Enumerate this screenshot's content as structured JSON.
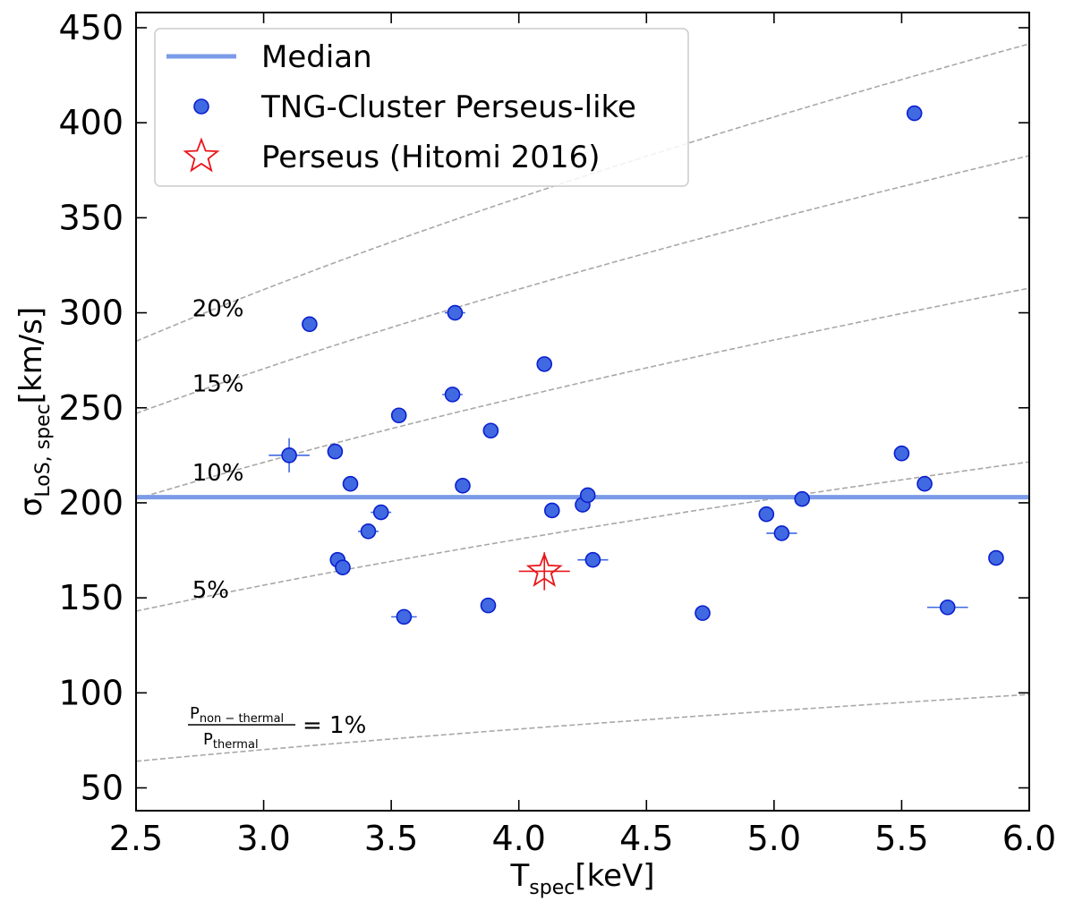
{
  "chart_data": {
    "type": "scatter",
    "xlabel": {
      "main": "T",
      "sub": "spec",
      "unit": "[keV]"
    },
    "ylabel": {
      "main": "σ",
      "sub": "LoS, spec",
      "unit": "[km/s]"
    },
    "xlim": [
      2.5,
      6.0
    ],
    "ylim": [
      38,
      458
    ],
    "x_ticks": [
      "2.5",
      "3.0",
      "3.5",
      "4.0",
      "4.5",
      "5.0",
      "5.5",
      "6.0"
    ],
    "y_ticks": [
      "50",
      "100",
      "150",
      "200",
      "250",
      "300",
      "350",
      "400",
      "450"
    ],
    "grid": false,
    "legend_position": "top-left",
    "legend": [
      {
        "label": "Median",
        "kind": "line"
      },
      {
        "label": "TNG-Cluster Perseus-like",
        "kind": "marker"
      },
      {
        "label": "Perseus (Hitomi 2016)",
        "kind": "star"
      }
    ],
    "median": 203,
    "colors": {
      "points": "#4169e1",
      "point_edge": "#0a1fd0",
      "median": "#7b9be8",
      "perseus": "#e8161b",
      "guide": "#a8a8a8"
    },
    "pressure_ratio_curves": [
      {
        "label": "20%",
        "percent": 20,
        "y_at": [
          [
            2.5,
            285
          ],
          [
            6.0,
            441
          ]
        ]
      },
      {
        "label": "15%",
        "percent": 15,
        "y_at": [
          [
            2.5,
            247
          ],
          [
            6.0,
            382
          ]
        ]
      },
      {
        "label": "10%",
        "percent": 10,
        "y_at": [
          [
            2.5,
            202
          ],
          [
            6.0,
            312
          ]
        ]
      },
      {
        "label": "5%",
        "percent": 5,
        "y_at": [
          [
            2.5,
            143
          ],
          [
            6.0,
            221
          ]
        ]
      },
      {
        "percent": 1,
        "y_at": [
          [
            2.5,
            64
          ],
          [
            6.0,
            99
          ]
        ]
      }
    ],
    "ratio_annotation": {
      "numerator": "P",
      "numerator_sub": "non − thermal",
      "denominator": "P",
      "denominator_sub": "thermal",
      "equals": "= 1%"
    },
    "tng_points": [
      {
        "x": 3.1,
        "y": 225,
        "xerr": 0.08,
        "yerr": 9
      },
      {
        "x": 3.18,
        "y": 294
      },
      {
        "x": 3.28,
        "y": 227
      },
      {
        "x": 3.29,
        "y": 170
      },
      {
        "x": 3.31,
        "y": 166
      },
      {
        "x": 3.34,
        "y": 210
      },
      {
        "x": 3.41,
        "y": 185,
        "xerr": 0.04
      },
      {
        "x": 3.46,
        "y": 195,
        "xerr": 0.04
      },
      {
        "x": 3.53,
        "y": 246
      },
      {
        "x": 3.55,
        "y": 140,
        "xerr": 0.05
      },
      {
        "x": 3.74,
        "y": 257,
        "xerr": 0.04
      },
      {
        "x": 3.75,
        "y": 300,
        "xerr": 0.04
      },
      {
        "x": 3.78,
        "y": 209
      },
      {
        "x": 3.88,
        "y": 146
      },
      {
        "x": 3.89,
        "y": 238
      },
      {
        "x": 4.1,
        "y": 273
      },
      {
        "x": 4.13,
        "y": 196
      },
      {
        "x": 4.25,
        "y": 199
      },
      {
        "x": 4.27,
        "y": 204
      },
      {
        "x": 4.29,
        "y": 170,
        "xerr": 0.06
      },
      {
        "x": 4.72,
        "y": 142
      },
      {
        "x": 4.97,
        "y": 194
      },
      {
        "x": 5.03,
        "y": 184,
        "xerr": 0.06
      },
      {
        "x": 5.11,
        "y": 202
      },
      {
        "x": 5.5,
        "y": 226
      },
      {
        "x": 5.55,
        "y": 405
      },
      {
        "x": 5.59,
        "y": 210
      },
      {
        "x": 5.68,
        "y": 145,
        "xerr": 0.08
      },
      {
        "x": 5.87,
        "y": 171
      }
    ],
    "perseus": {
      "x": 4.1,
      "y": 164,
      "xerr": 0.1,
      "yerr": 10
    }
  }
}
